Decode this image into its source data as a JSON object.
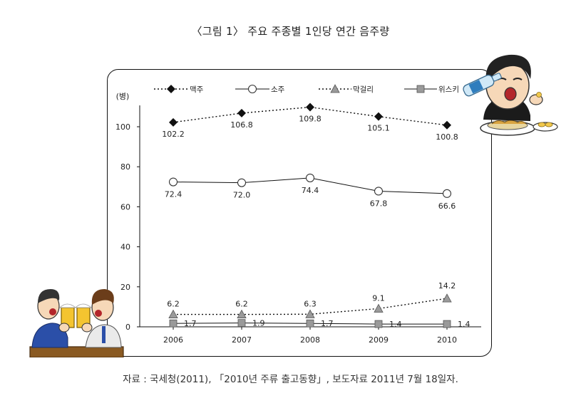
{
  "title": "〈그림 1〉 주요 주종별 1인당 연간 음주량",
  "source": "자료 : 국세청(2011), 「2010년 주류 출고동향」, 보도자료 2011년 7월 18일자.",
  "chart_data": {
    "type": "line",
    "title": "〈그림 1〉 주요 주종별 1인당 연간 음주량",
    "ylabel": "(병)",
    "xlabel": "",
    "categories": [
      "2006",
      "2007",
      "2008",
      "2009",
      "2010"
    ],
    "ylim": [
      0,
      110
    ],
    "yticks": [
      "0",
      "20",
      "40",
      "60",
      "80",
      "100"
    ],
    "grid": false,
    "legend_position": "top",
    "series": [
      {
        "name": "맥주",
        "values": [
          102.2,
          106.8,
          109.8,
          105.1,
          100.8
        ],
        "labels": [
          "102.2",
          "106.8",
          "109.8",
          "105.1",
          "100.8"
        ],
        "marker": "diamond-filled",
        "line": "dotted"
      },
      {
        "name": "소주",
        "values": [
          72.4,
          72.0,
          74.4,
          67.8,
          66.6
        ],
        "labels": [
          "72.4",
          "72.0",
          "74.4",
          "67.8",
          "66.6"
        ],
        "marker": "circle-open",
        "line": "solid"
      },
      {
        "name": "막걸리",
        "values": [
          6.2,
          6.2,
          6.3,
          9.1,
          14.2
        ],
        "labels": [
          "6.2",
          "6.2",
          "6.3",
          "9.1",
          "14.2"
        ],
        "marker": "triangle-grey",
        "line": "dotted"
      },
      {
        "name": "위스키",
        "values": [
          1.7,
          1.9,
          1.7,
          1.4,
          1.4
        ],
        "labels": [
          "1.7",
          "1.9",
          "1.7",
          "1.4",
          "1.4"
        ],
        "marker": "square-grey",
        "line": "solid"
      }
    ]
  },
  "icons": {
    "drinking_man": "man-drinking-bottle-icon",
    "cheers_men": "two-men-cheers-icon"
  },
  "colors": {
    "line": "#111111",
    "marker_grey": "#9a9a9a",
    "background": "#ffffff"
  }
}
